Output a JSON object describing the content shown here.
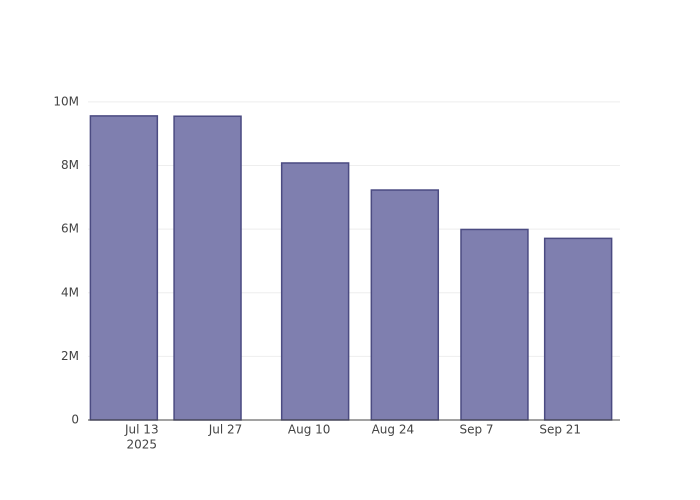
{
  "chart_data": {
    "type": "bar",
    "x": [
      "2025-07-10",
      "2025-07-24",
      "2025-08-11",
      "2025-08-26",
      "2025-09-10",
      "2025-09-24"
    ],
    "values": [
      9560000,
      9550000,
      8080000,
      7230000,
      5990000,
      5710000
    ],
    "color": "#7f7faf",
    "edge_color": "#4b4b82",
    "xlim": [
      "2025-07-04",
      "2025-10-01"
    ],
    "xticks": [
      {
        "value": "2025-07-13",
        "label": "Jul 13",
        "year": "2025"
      },
      {
        "value": "2025-07-27",
        "label": "Jul 27"
      },
      {
        "value": "2025-08-10",
        "label": "Aug 10"
      },
      {
        "value": "2025-08-24",
        "label": "Aug 24"
      },
      {
        "value": "2025-09-07",
        "label": "Sep 7"
      },
      {
        "value": "2025-09-21",
        "label": "Sep 21"
      }
    ],
    "ylim": [
      0,
      10060000
    ],
    "yticks": [
      0,
      {
        "value": 2000000,
        "label": "2M"
      },
      {
        "value": 4000000,
        "label": "4M"
      },
      {
        "value": 6000000,
        "label": "6M"
      },
      {
        "value": 8000000,
        "label": "8M"
      },
      {
        "value": 10000000,
        "label": "10M"
      }
    ],
    "grid": true
  }
}
